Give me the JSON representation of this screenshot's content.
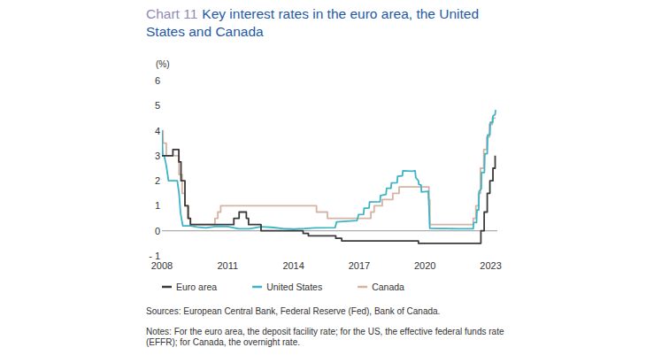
{
  "chart_data": {
    "type": "line",
    "chart_label": "Chart 11",
    "title": "Key interest rates in the euro area, the United States and Canada",
    "y_label": "(%)",
    "sources": "Sources: European Central Bank, Federal Reserve (Fed), Bank of Canada.",
    "notes": "Notes: For the euro area, the deposit facility rate; for the US, the effective federal funds rate (EFFR); for Canada, the overnight rate.",
    "xlim": [
      2008,
      2023.3
    ],
    "xticks": [
      2008,
      2011,
      2014,
      2017,
      2020,
      2023
    ],
    "ylim": [
      -1,
      6
    ],
    "yticks": [
      {
        "value": -1,
        "label": "- 1"
      },
      0,
      1,
      2,
      3,
      4,
      5,
      6
    ],
    "grid": false,
    "legend": "bottom",
    "series": [
      {
        "name": "Euro area",
        "color": "#3a3a3a",
        "x": [
          2008.0,
          2008.5,
          2008.5,
          2008.77,
          2008.77,
          2008.87,
          2008.87,
          2009.05,
          2009.05,
          2009.2,
          2009.2,
          2009.3,
          2009.3,
          2011.28,
          2011.28,
          2011.52,
          2011.52,
          2011.85,
          2011.85,
          2011.95,
          2011.95,
          2012.52,
          2012.52,
          2014.44,
          2014.44,
          2014.68,
          2014.68,
          2015.93,
          2015.93,
          2016.2,
          2016.2,
          2019.7,
          2019.7,
          2022.55,
          2022.55,
          2022.7,
          2022.7,
          2022.84,
          2022.84,
          2022.96,
          2022.96,
          2023.1,
          2023.1,
          2023.2,
          2023.2
        ],
        "values": [
          3.0,
          3.0,
          3.25,
          3.25,
          2.75,
          2.75,
          2.0,
          2.0,
          1.0,
          1.0,
          0.5,
          0.5,
          0.25,
          0.25,
          0.5,
          0.5,
          0.75,
          0.75,
          0.5,
          0.5,
          0.25,
          0.25,
          0,
          0,
          -0.1,
          -0.1,
          -0.2,
          -0.2,
          -0.3,
          -0.3,
          -0.4,
          -0.4,
          -0.5,
          -0.5,
          0,
          0,
          0.75,
          0.75,
          1.5,
          1.5,
          2.0,
          2.0,
          2.5,
          2.5,
          3.0
        ]
      },
      {
        "name": "United States",
        "color": "#3db3c6",
        "x": [
          2008.0,
          2008.04,
          2008.1,
          2008.2,
          2008.3,
          2008.7,
          2008.78,
          2008.85,
          2008.95,
          2009.3,
          2009.6,
          2010.0,
          2010.5,
          2011.0,
          2011.5,
          2012.0,
          2012.5,
          2013.0,
          2013.5,
          2014.0,
          2014.5,
          2015.0,
          2015.9,
          2015.97,
          2016.9,
          2016.97,
          2017.2,
          2017.22,
          2017.45,
          2017.47,
          2017.95,
          2017.97,
          2018.22,
          2018.25,
          2018.45,
          2018.47,
          2018.73,
          2018.75,
          2018.97,
          2018.99,
          2019.4,
          2019.55,
          2019.58,
          2019.7,
          2019.72,
          2019.82,
          2019.84,
          2020.15,
          2020.18,
          2020.22,
          2020.5,
          2021.0,
          2021.5,
          2022.2,
          2022.22,
          2022.35,
          2022.37,
          2022.45,
          2022.47,
          2022.57,
          2022.58,
          2022.71,
          2022.73,
          2022.84,
          2022.86,
          2022.96,
          2022.98,
          2023.09,
          2023.1,
          2023.2,
          2023.22
        ],
        "values": [
          4.0,
          3.0,
          3.0,
          2.6,
          2.0,
          2.0,
          1.5,
          0.7,
          0.2,
          0.2,
          0.15,
          0.12,
          0.18,
          0.17,
          0.08,
          0.08,
          0.16,
          0.14,
          0.09,
          0.07,
          0.09,
          0.12,
          0.13,
          0.36,
          0.41,
          0.65,
          0.66,
          0.9,
          0.91,
          1.15,
          1.16,
          1.41,
          1.45,
          1.7,
          1.7,
          1.91,
          1.92,
          2.18,
          2.2,
          2.4,
          2.38,
          2.4,
          2.12,
          2.0,
          1.85,
          1.83,
          1.55,
          1.58,
          1.0,
          0.1,
          0.09,
          0.09,
          0.08,
          0.08,
          0.33,
          0.33,
          0.83,
          0.83,
          1.58,
          1.68,
          2.33,
          2.33,
          3.08,
          3.08,
          3.83,
          3.83,
          4.33,
          4.33,
          4.58,
          4.65,
          4.83
        ]
      },
      {
        "name": "Canada",
        "color": "#d6b3a2",
        "x": [
          2008.0,
          2008.05,
          2008.05,
          2008.2,
          2008.2,
          2008.78,
          2008.78,
          2008.92,
          2008.92,
          2009.05,
          2009.05,
          2009.17,
          2009.17,
          2009.3,
          2009.3,
          2010.42,
          2010.42,
          2010.55,
          2010.55,
          2010.68,
          2010.68,
          2015.05,
          2015.05,
          2015.55,
          2015.55,
          2017.53,
          2017.53,
          2017.68,
          2017.68,
          2018.05,
          2018.05,
          2018.53,
          2018.53,
          2018.82,
          2018.82,
          2020.18,
          2020.18,
          2020.22,
          2020.22,
          2022.2,
          2022.2,
          2022.32,
          2022.32,
          2022.44,
          2022.44,
          2022.53,
          2022.53,
          2022.68,
          2022.68,
          2022.82,
          2022.82,
          2022.94,
          2022.94,
          2023.07,
          2023.07,
          2023.22
        ],
        "values": [
          4.0,
          4.0,
          3.5,
          3.5,
          3.0,
          3.0,
          2.25,
          2.25,
          1.5,
          1.5,
          1.0,
          1.0,
          0.5,
          0.5,
          0.25,
          0.25,
          0.5,
          0.5,
          0.75,
          0.75,
          1.0,
          1.0,
          0.75,
          0.75,
          0.5,
          0.5,
          0.75,
          0.75,
          1.0,
          1.0,
          1.25,
          1.25,
          1.5,
          1.5,
          1.75,
          1.75,
          1.25,
          1.25,
          0.25,
          0.25,
          0.5,
          0.5,
          1.0,
          1.0,
          1.5,
          1.5,
          2.5,
          2.5,
          3.25,
          3.25,
          3.75,
          3.75,
          4.25,
          4.25,
          4.5,
          4.5
        ]
      }
    ]
  }
}
